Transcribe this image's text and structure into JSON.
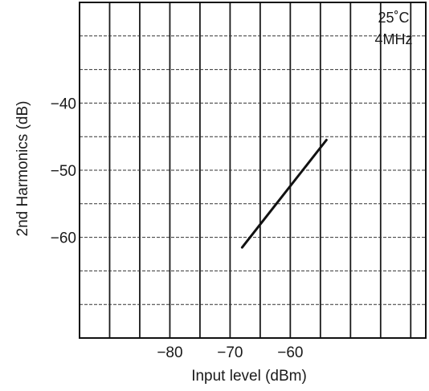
{
  "chart_data": {
    "type": "line",
    "title": "",
    "xlabel": "Input level (dBm)",
    "ylabel": "2nd Harmonics (dB)",
    "xlim": [
      -95,
      -37.5
    ],
    "ylim": [
      -75,
      -25
    ],
    "x_ticks": [
      -80,
      -70,
      -60
    ],
    "x_tick_labels": [
      "−80",
      "−70",
      "−60"
    ],
    "y_ticks": [
      -40,
      -50,
      -60
    ],
    "y_tick_labels": [
      "−40",
      "−50",
      "−60"
    ],
    "x_grid": [
      -90,
      -85,
      -80,
      -75,
      -70,
      -65,
      -60,
      -55,
      -50,
      -45,
      -40
    ],
    "y_grid": [
      -70,
      -65,
      -60,
      -55,
      -50,
      -45,
      -40,
      -35,
      -30
    ],
    "grid": true,
    "annotations": [
      "25˚C",
      "4MHz"
    ],
    "annotation_position": "top-right",
    "series": [
      {
        "points": [
          [
            -68,
            -61.5
          ],
          [
            -54,
            -45.5
          ]
        ]
      }
    ]
  }
}
